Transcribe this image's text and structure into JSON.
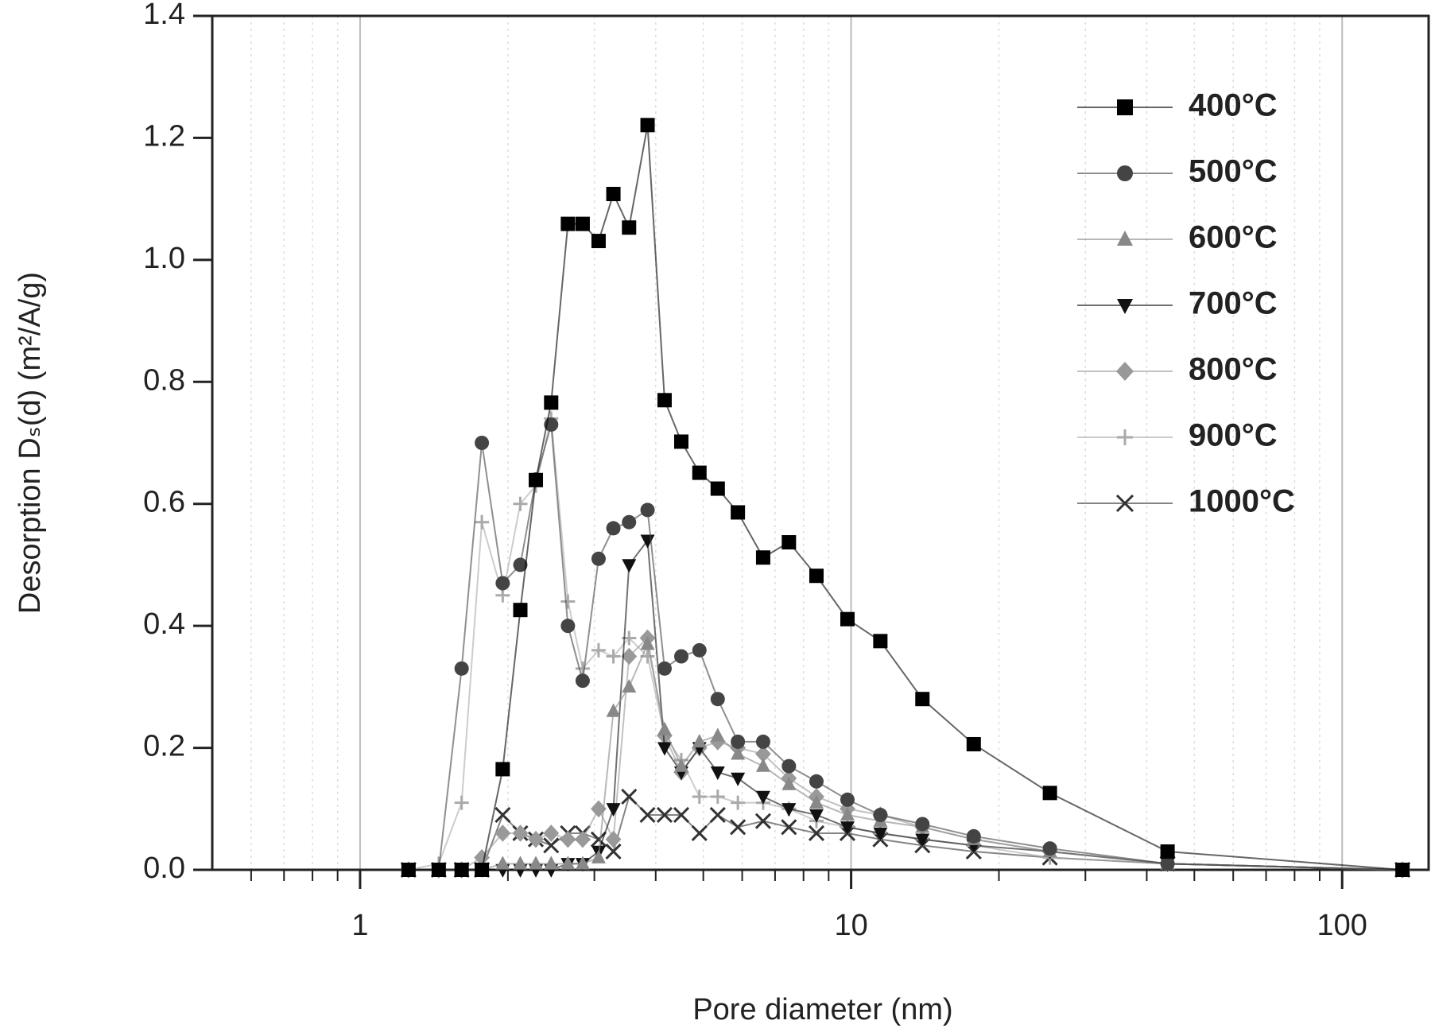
{
  "chart_data": {
    "type": "line",
    "x_label": "Pore diameter (nm)",
    "y_label": "Desorption Dₛ(d) (m²/A/g)",
    "x_scale": "log",
    "xlim": [
      0.5,
      150
    ],
    "ylim": [
      0,
      1.4
    ],
    "xticks": [
      1,
      10,
      100
    ],
    "xticks_minor": [
      0.6,
      0.7,
      0.8,
      0.9,
      2,
      3,
      4,
      5,
      6,
      7,
      8,
      9,
      20,
      30,
      40,
      50,
      60,
      70,
      80,
      90
    ],
    "yticks": [
      {
        "value": 0,
        "label": "0.0"
      },
      0.2,
      0.4,
      0.6,
      0.8,
      {
        "value": 1,
        "label": "1.0"
      },
      1.2,
      1.4
    ],
    "grid": true,
    "legend": "upper right",
    "x": [
      1.255,
      1.446,
      1.61,
      1.77,
      1.952,
      2.12,
      2.28,
      2.45,
      2.65,
      2.84,
      3.06,
      3.28,
      3.53,
      3.85,
      4.17,
      4.51,
      4.91,
      5.35,
      5.88,
      6.62,
      7.47,
      8.5,
      9.83,
      11.47,
      13.97,
      17.77,
      25.4,
      44.1,
      132.7
    ],
    "series": [
      {
        "name": "400°C",
        "color": "#000000",
        "marker": "square",
        "values": [
          0,
          0,
          0,
          0,
          0.165,
          0.426,
          0.639,
          0.766,
          1.059,
          1.059,
          1.031,
          1.108,
          1.053,
          1.221,
          0.77,
          0.702,
          0.651,
          0.625,
          0.586,
          0.512,
          0.537,
          0.482,
          0.411,
          0.375,
          0.28,
          0.206,
          0.126,
          0.03,
          0
        ]
      },
      {
        "name": "500°C",
        "color": "#444444",
        "marker": "circle",
        "values": [
          0,
          0,
          0.33,
          0.7,
          0.47,
          0.5,
          0.64,
          0.73,
          0.4,
          0.31,
          0.51,
          0.56,
          0.57,
          0.59,
          0.33,
          0.35,
          0.36,
          0.28,
          0.21,
          0.21,
          0.17,
          0.145,
          0.115,
          0.09,
          0.075,
          0.055,
          0.035,
          0.01,
          0
        ]
      },
      {
        "name": "600°C",
        "color": "#888888",
        "marker": "triangle",
        "values": [
          0,
          0,
          0,
          0,
          0.01,
          0.01,
          0.01,
          0.01,
          0.01,
          0.01,
          0.02,
          0.26,
          0.3,
          0.37,
          0.23,
          0.17,
          0.21,
          0.22,
          0.19,
          0.17,
          0.14,
          0.11,
          0.09,
          0.08,
          0.07,
          0.05,
          0.03,
          0.01,
          0
        ]
      },
      {
        "name": "700°C",
        "color": "#111111",
        "marker": "triangle-down",
        "values": [
          0,
          0,
          0,
          0,
          0,
          0,
          0,
          0,
          0.01,
          0.01,
          0.03,
          0.1,
          0.5,
          0.54,
          0.2,
          0.16,
          0.2,
          0.16,
          0.15,
          0.12,
          0.1,
          0.09,
          0.07,
          0.06,
          0.05,
          0.04,
          0.03,
          0.01,
          0
        ]
      },
      {
        "name": "800°C",
        "color": "#999999",
        "marker": "diamond",
        "values": [
          0,
          0,
          0,
          0.02,
          0.06,
          0.06,
          0.05,
          0.06,
          0.05,
          0.05,
          0.1,
          0.05,
          0.35,
          0.38,
          0.22,
          0.16,
          0.2,
          0.21,
          0.2,
          0.19,
          0.15,
          0.12,
          0.1,
          0.09,
          0.07,
          0.05,
          0.03,
          0.01,
          0
        ]
      },
      {
        "name": "900°C",
        "color": "#aaaaaa",
        "marker": "plus",
        "values": [
          0,
          0.01,
          0.11,
          0.57,
          0.45,
          0.6,
          0.63,
          0.74,
          0.44,
          0.33,
          0.36,
          0.35,
          0.38,
          0.35,
          0.22,
          0.18,
          0.12,
          0.12,
          0.11,
          0.11,
          0.1,
          0.08,
          0.07,
          0.06,
          0.05,
          0.04,
          0.02,
          0.01,
          0
        ]
      },
      {
        "name": "1000°C",
        "color": "#333333",
        "marker": "cross",
        "values": [
          0,
          0,
          0,
          0,
          0.09,
          0.06,
          0.05,
          0.04,
          0.06,
          0.06,
          0.05,
          0.03,
          0.12,
          0.09,
          0.09,
          0.09,
          0.06,
          0.09,
          0.07,
          0.08,
          0.07,
          0.06,
          0.06,
          0.05,
          0.04,
          0.03,
          0.02,
          0.01,
          0
        ]
      }
    ]
  }
}
